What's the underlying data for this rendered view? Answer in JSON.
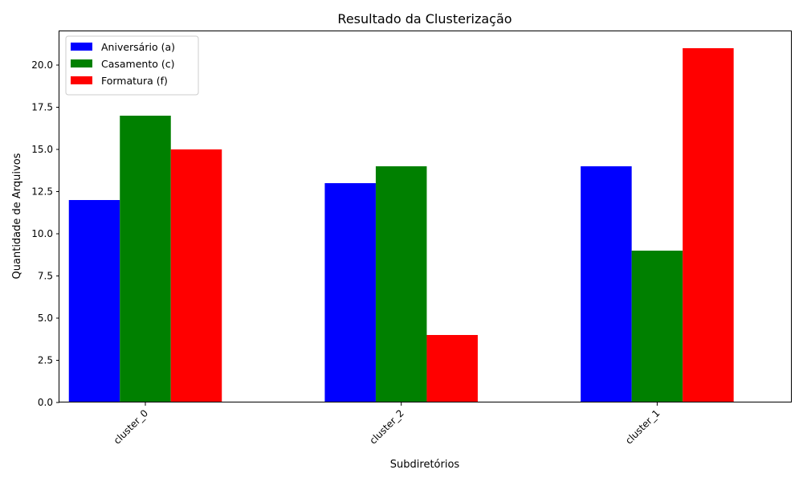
{
  "chart_data": {
    "type": "bar",
    "title": "Resultado da Clusterização",
    "xlabel": "Subdiretórios",
    "ylabel": "Quantidade de Arquivos",
    "categories": [
      "cluster_0",
      "cluster_2",
      "cluster_1"
    ],
    "series": [
      {
        "name": "Aniversário (a)",
        "color": "#0000ff",
        "values": [
          12,
          13,
          14
        ]
      },
      {
        "name": "Casamento (c)",
        "color": "#008000",
        "values": [
          17,
          14,
          9
        ]
      },
      {
        "name": "Formatura (f)",
        "color": "#ff0000",
        "values": [
          15,
          4,
          21
        ]
      }
    ],
    "ylim": [
      0,
      22
    ],
    "yticks": [
      "0.0",
      "2.5",
      "5.0",
      "7.5",
      "10.0",
      "12.5",
      "15.0",
      "17.5",
      "20.0"
    ],
    "legend_position": "top-left",
    "grid": false
  }
}
